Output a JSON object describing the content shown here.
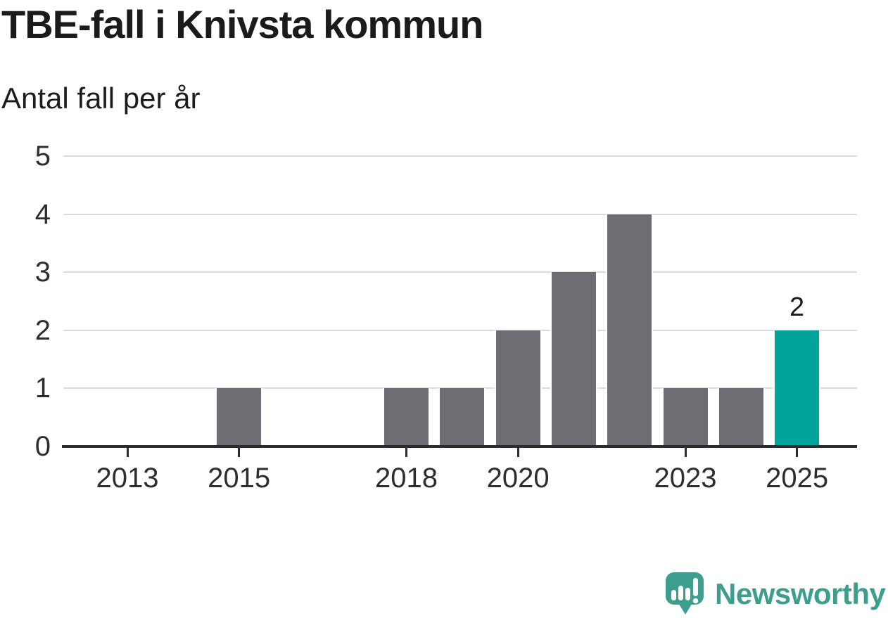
{
  "title": "TBE-fall i Knivsta kommun",
  "subtitle": "Antal fall per år",
  "chart_data": {
    "type": "bar",
    "categories": [
      2013,
      2014,
      2015,
      2016,
      2017,
      2018,
      2019,
      2020,
      2021,
      2022,
      2023,
      2024,
      2025
    ],
    "values": [
      0,
      0,
      1,
      0,
      0,
      1,
      1,
      2,
      3,
      4,
      1,
      1,
      2
    ],
    "title": "TBE-fall i Knivsta kommun",
    "subtitle": "Antal fall per år",
    "xlabel": "",
    "ylabel": "Antal fall per år",
    "ylim": [
      0,
      5
    ],
    "y_ticks": [
      0,
      1,
      2,
      3,
      4,
      5
    ],
    "x_tick_years": [
      2013,
      2015,
      2018,
      2020,
      2023,
      2025
    ],
    "grid": "horizontal",
    "legend": "none",
    "bar_color": "#6f6c74",
    "highlight_year": 2025,
    "highlight_value_label": "2",
    "highlight_color": "#00a49b",
    "axis_color": "#2d2b2f",
    "gridline_color": "#dbdbdb"
  },
  "footer": {
    "brand": "Newsworthy",
    "brand_color": "#3d9e8d",
    "logo_icon": "newsworthy-speech-bubble-bar-chart-icon"
  }
}
